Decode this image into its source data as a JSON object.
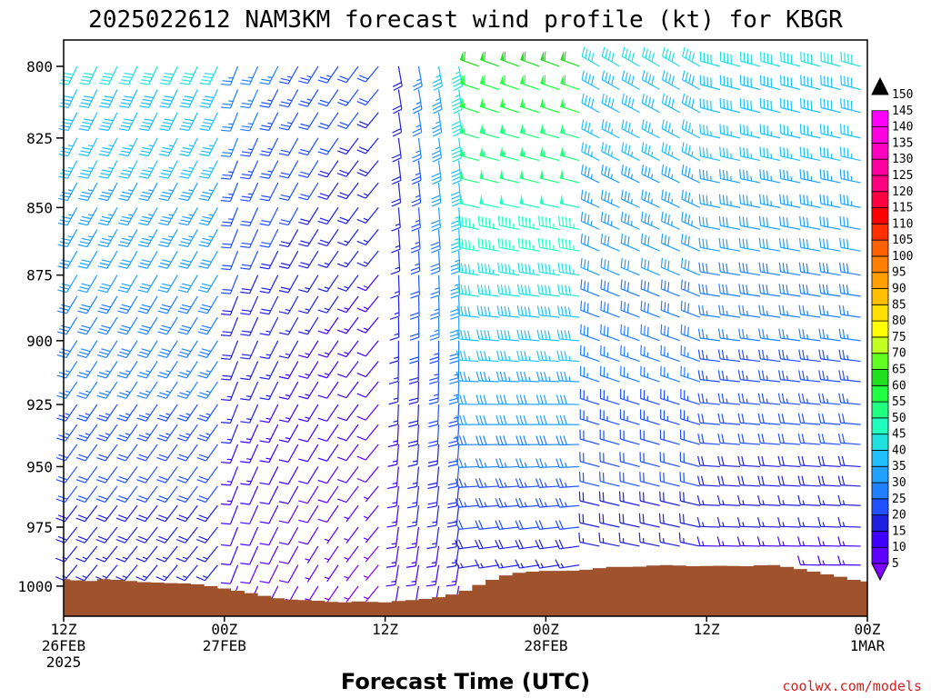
{
  "chart_data": {
    "type": "wind_barb_profile",
    "title": "2025022612 NAM3KM forecast wind profile (kt) for KBGR",
    "xlabel": "Forecast Time (UTC)",
    "ylabel": "",
    "y_scale": "pressure",
    "yticks": [
      800,
      825,
      850,
      875,
      900,
      925,
      950,
      975,
      1000
    ],
    "ylim": [
      1013,
      791
    ],
    "xlim_hours": [
      0,
      60
    ],
    "x_ticks": [
      {
        "hour": 0,
        "lines": [
          "12Z",
          "26FEB",
          "2025"
        ]
      },
      {
        "hour": 12,
        "lines": [
          "00Z",
          "27FEB"
        ]
      },
      {
        "hour": 24,
        "lines": [
          "12Z"
        ]
      },
      {
        "hour": 36,
        "lines": [
          "00Z",
          "28FEB"
        ]
      },
      {
        "hour": 48,
        "lines": [
          "12Z"
        ]
      },
      {
        "hour": 60,
        "lines": [
          "00Z",
          "1MAR"
        ]
      }
    ],
    "colorbar": {
      "labels": [
        5,
        10,
        15,
        20,
        25,
        30,
        35,
        40,
        45,
        50,
        55,
        60,
        65,
        70,
        75,
        80,
        85,
        90,
        95,
        100,
        105,
        110,
        115,
        120,
        125,
        130,
        135,
        140,
        145,
        150
      ],
      "colors": [
        "#8000ff",
        "#6000ff",
        "#4000ff",
        "#2020e0",
        "#2050ff",
        "#2080ff",
        "#20a0ff",
        "#20c0ff",
        "#20e0e0",
        "#20ffc0",
        "#20ff80",
        "#20ff40",
        "#20e020",
        "#60ff20",
        "#c0ff20",
        "#ffff00",
        "#ffe000",
        "#ffc000",
        "#ffa000",
        "#ff8000",
        "#ff6000",
        "#ff3000",
        "#ff0000",
        "#ff0040",
        "#ff0080",
        "#ff00a0",
        "#ff00c0",
        "#ff00e0",
        "#ff00ff",
        "#e000ff"
      ]
    },
    "ground_color": "#a0522d",
    "surface_pressure": [
      [
        0,
        997
      ],
      [
        1,
        997.5
      ],
      [
        2,
        997.8
      ],
      [
        3,
        997
      ],
      [
        4,
        997.3
      ],
      [
        5,
        997.8
      ],
      [
        6,
        998.3
      ],
      [
        7,
        998.5
      ],
      [
        8,
        998.7
      ],
      [
        9,
        998.8
      ],
      [
        10,
        999.2
      ],
      [
        11,
        1000
      ],
      [
        12,
        1001
      ],
      [
        13,
        1002
      ],
      [
        14,
        1003
      ],
      [
        15,
        1004.2
      ],
      [
        16,
        1005.2
      ],
      [
        17,
        1005.8
      ],
      [
        18,
        1006
      ],
      [
        19,
        1006.3
      ],
      [
        20,
        1006.8
      ],
      [
        21,
        1007
      ],
      [
        22,
        1006.6
      ],
      [
        23,
        1006.8
      ],
      [
        24,
        1007
      ],
      [
        25,
        1006.4
      ],
      [
        26,
        1006
      ],
      [
        27,
        1005.5
      ],
      [
        28,
        1004.8
      ],
      [
        29,
        1003.6
      ],
      [
        30,
        1002
      ],
      [
        31,
        999.5
      ],
      [
        32,
        997.3
      ],
      [
        33,
        995.4
      ],
      [
        34,
        994.3
      ],
      [
        35,
        993.8
      ],
      [
        36,
        993.5
      ],
      [
        37,
        993.5
      ],
      [
        38,
        993.4
      ],
      [
        39,
        993
      ],
      [
        40,
        992.3
      ],
      [
        41,
        991.8
      ],
      [
        42,
        991.8
      ],
      [
        43,
        991.7
      ],
      [
        44,
        991.2
      ],
      [
        45,
        991
      ],
      [
        46,
        991.2
      ],
      [
        47,
        991.5
      ],
      [
        48,
        991.4
      ],
      [
        49,
        991.3
      ],
      [
        50,
        991.4
      ],
      [
        51,
        991.5
      ],
      [
        52,
        991.1
      ],
      [
        53,
        991
      ],
      [
        54,
        991.8
      ],
      [
        55,
        992.7
      ],
      [
        56,
        993.8
      ],
      [
        57,
        995
      ],
      [
        58,
        996
      ],
      [
        59,
        997.3
      ],
      [
        60,
        998
      ]
    ],
    "wind_barbs": {
      "pressure_levels": [
        800,
        808,
        816,
        825,
        833,
        841,
        850,
        858,
        866,
        875,
        883,
        891,
        900,
        908,
        916,
        925,
        933,
        941,
        950,
        958,
        966,
        975,
        983,
        991,
        1000,
        1008
      ],
      "hours_step": 1.5,
      "note": "speed_kt and direction_deg approximated per time column"
    },
    "credit": "coolwx.com/models"
  }
}
